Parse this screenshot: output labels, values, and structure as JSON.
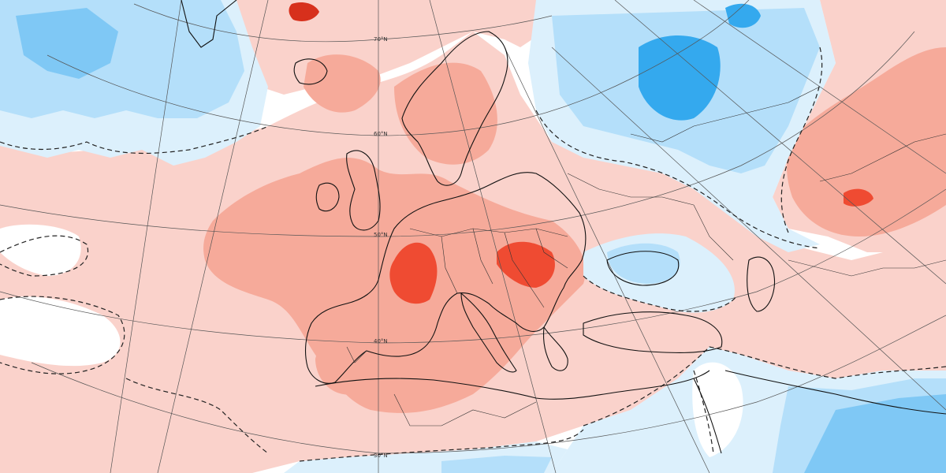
{
  "map": {
    "latitude_labels": [
      "70°N",
      "60°N",
      "50°N",
      "40°N",
      "30°N"
    ],
    "palette": {
      "warm_1": "#fad2cb",
      "warm_2": "#f6aa9a",
      "warm_3": "#f3877a",
      "warm_4": "#ef4b32",
      "warm_5": "#d7301c",
      "cool_1": "#dcf0fc",
      "cool_2": "#b4dffa",
      "cool_3": "#7fc8f5",
      "cool_4": "#34a9ee",
      "neutral": "#ffffff",
      "coastline": "#111111",
      "zero_contour": "#222222"
    },
    "contour_style": "dashed zero-anomaly line",
    "projection": "conic"
  }
}
